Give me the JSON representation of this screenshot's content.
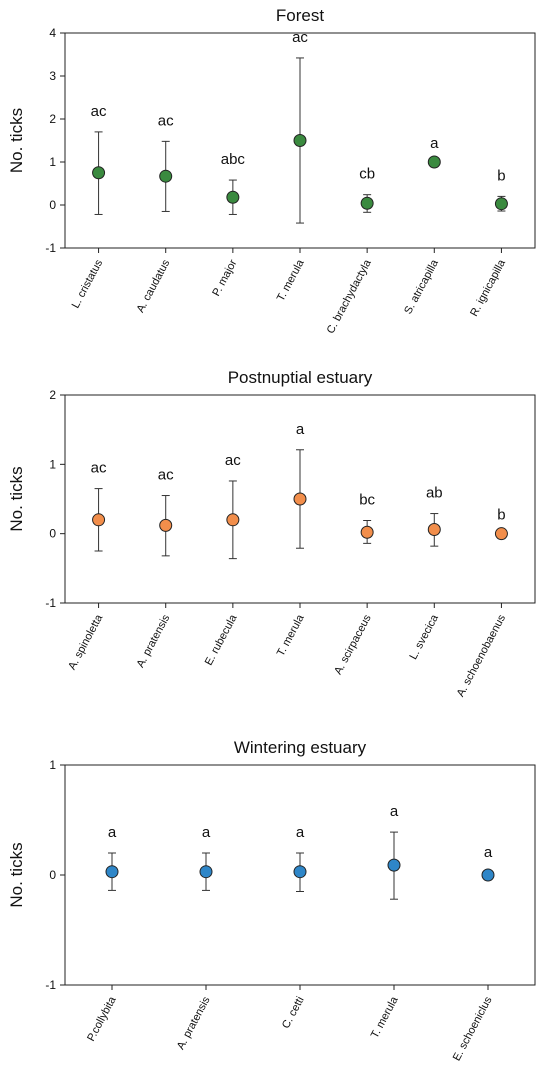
{
  "chart_data": [
    {
      "type": "scatter",
      "title": "Forest",
      "ylabel": "No. ticks",
      "ylim": [
        -1,
        4
      ],
      "yticks": [
        -1,
        0,
        1,
        2,
        3,
        4
      ],
      "marker_color": "#3a8a3f",
      "categories": [
        "L. cristatus",
        "A. caudatus",
        "P. major",
        "T. merula",
        "C. brachydactyla",
        "S. atricapilla",
        "R. ignicapilla"
      ],
      "mean": [
        0.75,
        0.67,
        0.18,
        1.5,
        0.04,
        1.0,
        0.03
      ],
      "error_low": [
        -0.22,
        -0.15,
        -0.22,
        -0.42,
        -0.17,
        1.0,
        -0.14
      ],
      "error_high": [
        1.7,
        1.48,
        0.58,
        3.42,
        0.24,
        1.0,
        0.2
      ],
      "letters": [
        "ac",
        "ac",
        "abc",
        "ac",
        "cb",
        "a",
        "b"
      ]
    },
    {
      "type": "scatter",
      "title": "Postnuptial estuary",
      "ylabel": "No. ticks",
      "ylim": [
        -1,
        2
      ],
      "yticks": [
        -1,
        0,
        1,
        2
      ],
      "marker_color": "#f28e4b",
      "categories": [
        "A. spinoletta",
        "A. pratensis",
        "E. rubecula",
        "T. merula",
        "A. scirpaceus",
        "L. svecica",
        "A. schoenobaenus"
      ],
      "mean": [
        0.2,
        0.12,
        0.2,
        0.5,
        0.02,
        0.06,
        0.0
      ],
      "error_low": [
        -0.25,
        -0.32,
        -0.36,
        -0.21,
        -0.14,
        -0.18,
        0.0
      ],
      "error_high": [
        0.65,
        0.55,
        0.76,
        1.21,
        0.19,
        0.29,
        0.0
      ],
      "letters": [
        "ac",
        "ac",
        "ac",
        "a",
        "bc",
        "ab",
        "b"
      ]
    },
    {
      "type": "scatter",
      "title": "Wintering estuary",
      "ylabel": "No. ticks",
      "ylim": [
        -1,
        1
      ],
      "yticks": [
        -1,
        0,
        1
      ],
      "marker_color": "#2e86c8",
      "categories": [
        "P.collybita",
        "A. pratensis",
        "C. cetti",
        "T. merula",
        "E. schoeniclus"
      ],
      "mean": [
        0.03,
        0.03,
        0.03,
        0.09,
        0.0
      ],
      "error_low": [
        -0.14,
        -0.14,
        -0.15,
        -0.22,
        -0.02
      ],
      "error_high": [
        0.2,
        0.2,
        0.2,
        0.39,
        0.02
      ],
      "letters": [
        "a",
        "a",
        "a",
        "a",
        "a"
      ]
    }
  ]
}
